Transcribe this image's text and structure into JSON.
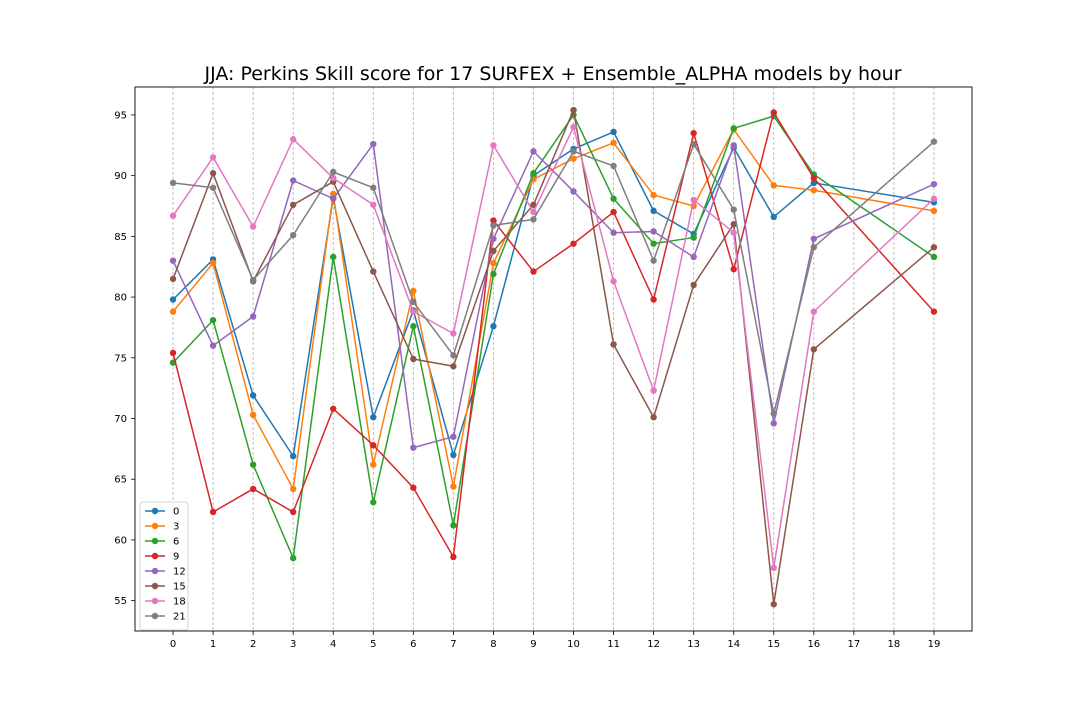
{
  "chart_data": {
    "type": "line",
    "title": "JJA: Perkins Skill score for 17 SURFEX + Ensemble_ALPHA models by hour",
    "xlabel": "",
    "ylabel": "",
    "xlim": [
      -0.95,
      19.95
    ],
    "ylim": [
      52.5,
      97.3
    ],
    "xticks": [
      0,
      1,
      2,
      3,
      4,
      5,
      6,
      7,
      8,
      9,
      10,
      11,
      12,
      13,
      14,
      15,
      16,
      17,
      18,
      19
    ],
    "yticks": [
      55,
      60,
      65,
      70,
      75,
      80,
      85,
      90,
      95
    ],
    "x_grid": true,
    "y_grid": false,
    "legend_position": "lower left",
    "series": [
      {
        "name": "0",
        "color": "#1f77b4",
        "x": [
          0,
          1,
          2,
          3,
          4,
          5,
          6,
          7,
          8,
          9,
          10,
          11,
          12,
          13,
          14,
          15,
          16,
          19
        ],
        "values": [
          79.8,
          83.1,
          71.9,
          66.9,
          88.2,
          70.1,
          78.9,
          67.0,
          77.6,
          90.0,
          92.2,
          93.6,
          87.1,
          85.2,
          92.3,
          86.6,
          89.4,
          87.8
        ]
      },
      {
        "name": "3",
        "color": "#ff7f0e",
        "x": [
          0,
          1,
          2,
          3,
          4,
          5,
          6,
          7,
          8,
          9,
          10,
          11,
          12,
          13,
          14,
          15,
          16,
          19
        ],
        "values": [
          78.8,
          82.8,
          70.3,
          64.2,
          88.5,
          66.2,
          80.5,
          64.4,
          82.8,
          89.7,
          91.4,
          92.7,
          88.4,
          87.5,
          93.8,
          89.2,
          88.8,
          87.1
        ]
      },
      {
        "name": "6",
        "color": "#2ca02c",
        "x": [
          0,
          1,
          2,
          3,
          4,
          5,
          6,
          7,
          8,
          9,
          10,
          11,
          12,
          13,
          14,
          15,
          16,
          19
        ],
        "values": [
          74.6,
          78.1,
          66.2,
          58.5,
          83.3,
          63.1,
          77.6,
          61.2,
          81.9,
          90.2,
          95.0,
          88.1,
          84.4,
          84.9,
          93.9,
          94.9,
          90.1,
          83.3
        ]
      },
      {
        "name": "9",
        "color": "#d62728",
        "x": [
          0,
          1,
          2,
          3,
          4,
          5,
          6,
          7,
          8,
          9,
          10,
          11,
          12,
          13,
          14,
          15,
          16,
          19
        ],
        "values": [
          75.4,
          62.3,
          64.2,
          62.3,
          70.8,
          67.8,
          64.3,
          58.6,
          86.3,
          82.1,
          84.4,
          87.0,
          79.8,
          93.5,
          82.3,
          95.2,
          89.8,
          78.8
        ]
      },
      {
        "name": "12",
        "color": "#9467bd",
        "x": [
          0,
          1,
          2,
          3,
          4,
          5,
          6,
          7,
          8,
          9,
          10,
          11,
          12,
          13,
          14,
          15,
          16,
          19
        ],
        "values": [
          83.0,
          76.0,
          78.4,
          89.6,
          88.1,
          92.6,
          67.6,
          68.5,
          84.8,
          92.0,
          88.7,
          85.3,
          85.4,
          83.3,
          92.5,
          69.6,
          84.8,
          89.3
        ]
      },
      {
        "name": "15",
        "color": "#8c564b",
        "x": [
          0,
          1,
          2,
          3,
          4,
          5,
          6,
          7,
          8,
          9,
          10,
          11,
          12,
          13,
          14,
          15,
          16,
          19
        ],
        "values": [
          81.5,
          90.2,
          81.3,
          87.6,
          89.5,
          82.1,
          74.9,
          74.3,
          83.8,
          87.6,
          95.4,
          76.1,
          70.1,
          81.0,
          86.0,
          54.7,
          75.7,
          84.1
        ]
      },
      {
        "name": "18",
        "color": "#e377c2",
        "x": [
          0,
          1,
          2,
          3,
          4,
          5,
          6,
          7,
          8,
          9,
          10,
          11,
          12,
          13,
          14,
          15,
          16,
          19
        ],
        "values": [
          86.7,
          91.5,
          85.8,
          93.0,
          89.8,
          87.6,
          78.8,
          77.0,
          92.5,
          87.0,
          94.0,
          81.3,
          72.3,
          88.0,
          85.3,
          57.7,
          78.8,
          88.1
        ]
      },
      {
        "name": "21",
        "color": "#7f7f7f",
        "x": [
          0,
          1,
          2,
          3,
          4,
          5,
          6,
          7,
          8,
          9,
          10,
          11,
          12,
          13,
          14,
          15,
          16,
          19
        ],
        "values": [
          89.4,
          89.0,
          81.4,
          85.1,
          90.3,
          89.0,
          79.6,
          75.2,
          85.9,
          86.4,
          92.0,
          90.8,
          83.0,
          92.6,
          87.2,
          70.4,
          84.1,
          92.8
        ]
      }
    ]
  }
}
